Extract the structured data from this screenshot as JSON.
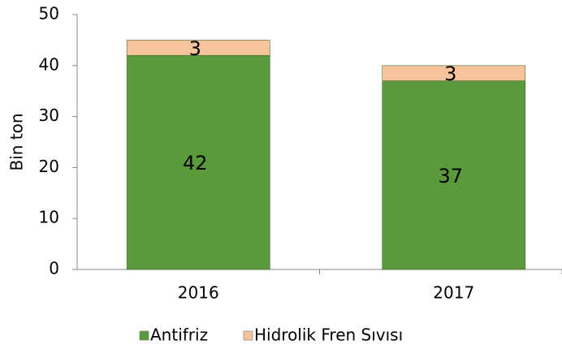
{
  "chart_data": {
    "type": "stacked_bar",
    "y_label": "Bin ton",
    "categories": [
      "2016",
      "2017"
    ],
    "series": [
      {
        "name": "Antifriz",
        "color": "#5b9a3c",
        "values": [
          42,
          37
        ]
      },
      {
        "name": "Hidrolik Fren Sıvısı",
        "color": "#f6c39a",
        "values": [
          3,
          3
        ]
      }
    ],
    "ylim": [
      0,
      50
    ],
    "yticks": [
      0,
      10,
      20,
      30,
      40,
      50
    ]
  }
}
